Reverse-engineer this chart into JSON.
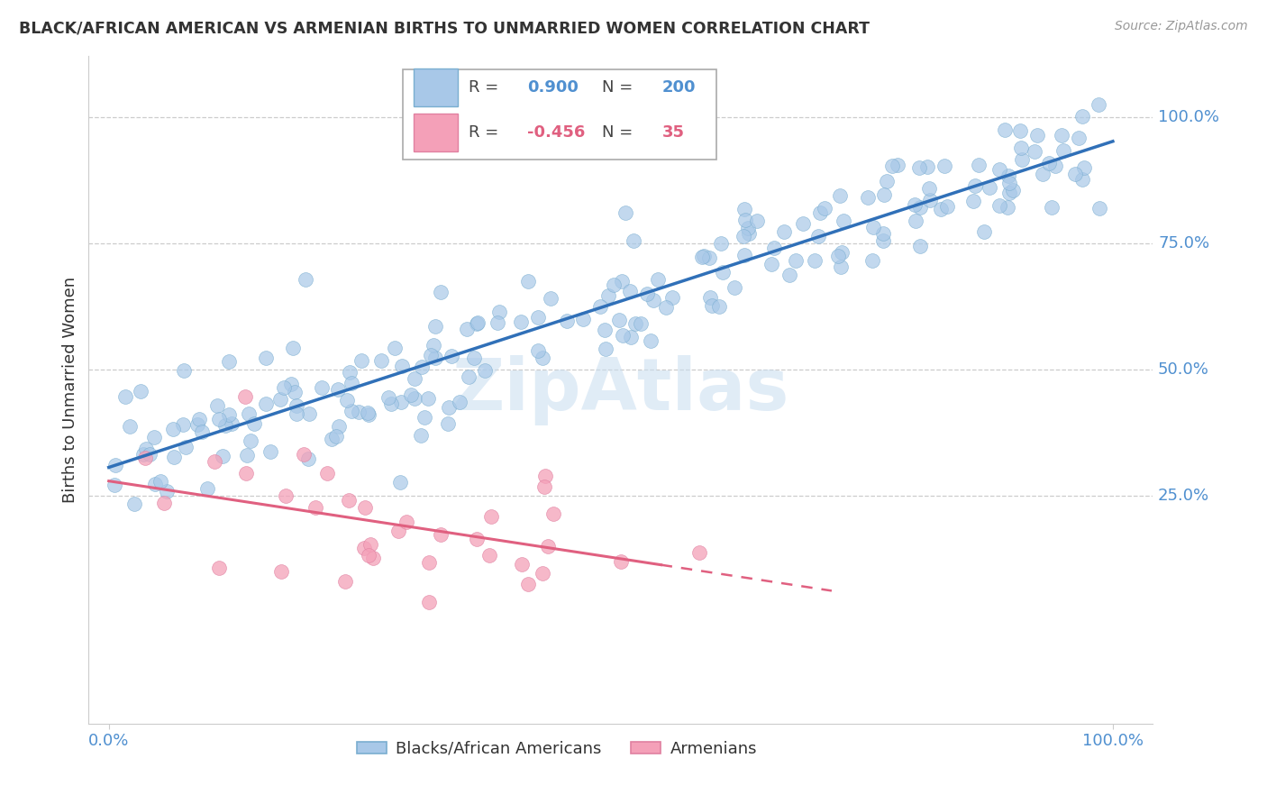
{
  "title": "BLACK/AFRICAN AMERICAN VS ARMENIAN BIRTHS TO UNMARRIED WOMEN CORRELATION CHART",
  "source": "Source: ZipAtlas.com",
  "ylabel": "Births to Unmarried Women",
  "blue_R": "0.900",
  "blue_N": "200",
  "pink_R": "-0.456",
  "pink_N": "35",
  "legend_blue": "Blacks/African Americans",
  "legend_pink": "Armenians",
  "watermark": "ZipAtlas",
  "blue_color": "#a8c8e8",
  "blue_edge_color": "#7aaed0",
  "blue_line_color": "#3070b8",
  "pink_color": "#f4a0b8",
  "pink_edge_color": "#e080a0",
  "pink_line_color": "#e06080",
  "title_color": "#333333",
  "axis_label_color": "#5090d0",
  "grid_color": "#cccccc",
  "background_color": "#ffffff",
  "watermark_color": "#c8ddf0",
  "blue_seed": 42,
  "pink_seed": 123,
  "blue_n": 200,
  "pink_n": 35
}
